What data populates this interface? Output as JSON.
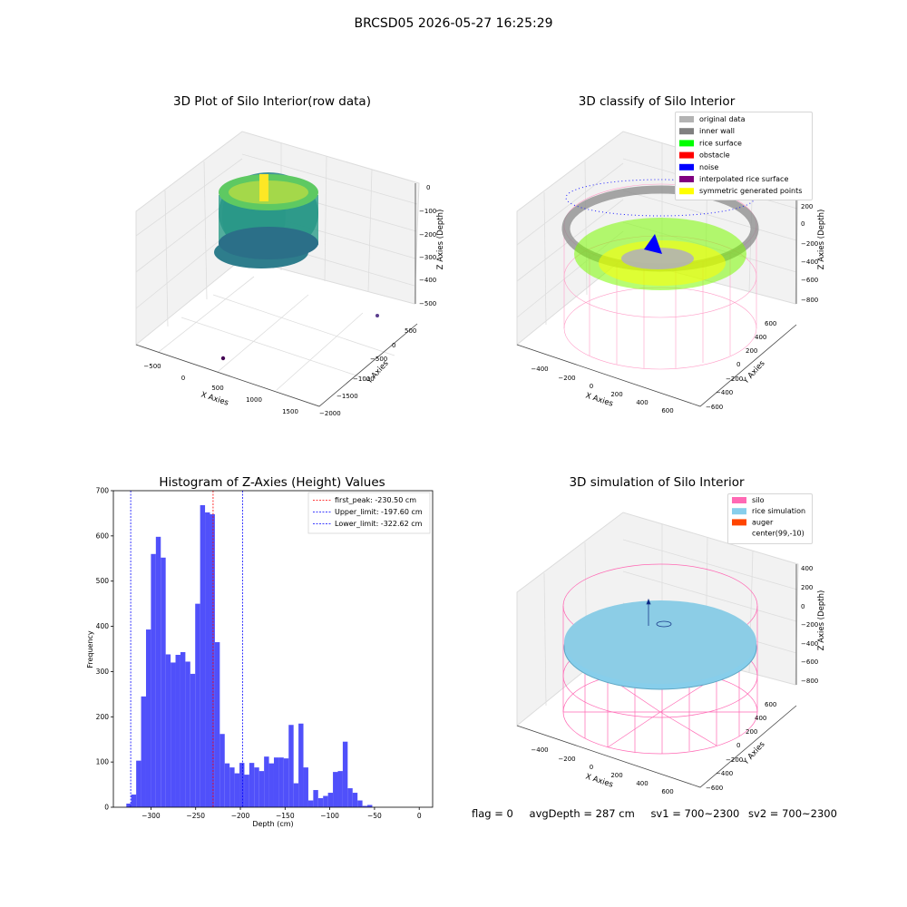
{
  "suptitle": "BRCSD05 2026-05-27 16:25:29",
  "bottom_info": {
    "flag": "flag = 0",
    "avg_depth": "avgDepth = 287 cm",
    "sv1": "sv1 = 700~2300",
    "sv2": "sv2 = 700~2300"
  },
  "chart_data": [
    {
      "type": "scatter",
      "title": "3D Plot of Silo Interior(row data)",
      "xlabel": "X Axies",
      "ylabel": "Y Axies",
      "zlabel": "Z Axies (Depth)",
      "x_ticks": [
        "−500",
        "0",
        "500",
        "1000",
        "1500"
      ],
      "y_ticks": [
        "500",
        "0",
        "−500",
        "−1000",
        "−1500",
        "−2000"
      ],
      "z_ticks": [
        "0",
        "−100",
        "−200",
        "−300",
        "−400",
        "−500"
      ],
      "colormap": "viridis"
    },
    {
      "type": "scatter",
      "title": "3D classify of Silo Interior",
      "xlabel": "X Axies",
      "ylabel": "Y Axies",
      "zlabel": "Z Axies (Depth)",
      "x_ticks": [
        "−400",
        "−200",
        "0",
        "200",
        "400",
        "600"
      ],
      "y_ticks": [
        "600",
        "400",
        "200",
        "0",
        "−200",
        "−400",
        "−600"
      ],
      "z_ticks": [
        "200",
        "0",
        "−200",
        "−400",
        "−600",
        "−800"
      ],
      "legend_position": "top-right",
      "legend": [
        {
          "label": "original data",
          "color": "#b3b3b3"
        },
        {
          "label": "inner wall",
          "color": "#808080"
        },
        {
          "label": "rice surface",
          "color": "#00ff00"
        },
        {
          "label": "obstacle",
          "color": "#ff0000"
        },
        {
          "label": "noise",
          "color": "#0000ff"
        },
        {
          "label": "interpolated rice surface",
          "color": "#800080"
        },
        {
          "label": "symmetric generated points",
          "color": "#ffff00"
        }
      ]
    },
    {
      "type": "bar",
      "title": "Histogram of Z-Axies (Height) Values",
      "xlabel": "Depth (cm)",
      "ylabel": "Frequency",
      "xlim": [
        -342,
        15
      ],
      "ylim": [
        0,
        700
      ],
      "x_ticks": [
        -300,
        -250,
        -200,
        -150,
        -100,
        -50,
        0
      ],
      "x_tick_labels": [
        "−300",
        "−250",
        "−200",
        "−150",
        "−100",
        "−50",
        "0"
      ],
      "y_ticks": [
        0,
        100,
        200,
        300,
        400,
        500,
        600,
        700
      ],
      "bar_color": "#5050fa",
      "bin_start": -327.5,
      "bin_width": 5.5,
      "values": [
        8,
        28,
        103,
        245,
        393,
        560,
        598,
        552,
        338,
        320,
        337,
        343,
        322,
        295,
        450,
        668,
        652,
        648,
        365,
        162,
        97,
        88,
        75,
        98,
        72,
        98,
        88,
        80,
        112,
        97,
        110,
        110,
        108,
        182,
        53,
        185,
        88,
        15,
        38,
        20,
        25,
        32,
        78,
        80,
        145,
        42,
        32,
        15,
        3,
        5
      ],
      "reference_lines": [
        {
          "label": "first_peak: -230.50 cm",
          "value": -230.5,
          "color": "#ff0000"
        },
        {
          "label": "Upper_limit: -197.60 cm",
          "value": -197.6,
          "color": "#0000ff"
        },
        {
          "label": "Lower_limit: -322.62 cm",
          "value": -322.62,
          "color": "#0000ff"
        }
      ],
      "legend_position": "top-right"
    },
    {
      "type": "scatter",
      "title": "3D simulation of Silo Interior",
      "xlabel": "X Axies",
      "ylabel": "Y Axies",
      "zlabel": "Z Axies (Depth)",
      "x_ticks": [
        "−400",
        "−200",
        "0",
        "200",
        "400",
        "600"
      ],
      "y_ticks": [
        "600",
        "400",
        "200",
        "0",
        "−200",
        "−400",
        "−600"
      ],
      "z_ticks": [
        "400",
        "200",
        "0",
        "−200",
        "−400",
        "−600",
        "−800"
      ],
      "legend_position": "top-right",
      "legend": [
        {
          "label": "silo",
          "color": "#ff69b4"
        },
        {
          "label": "rice simulation",
          "color": "#87ceeb"
        },
        {
          "label": "auger",
          "color": "#ff4500"
        },
        {
          "label": "center(99,-10)",
          "color": "none"
        }
      ]
    }
  ]
}
